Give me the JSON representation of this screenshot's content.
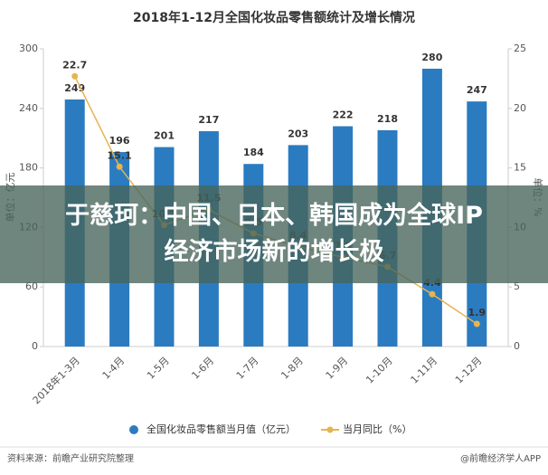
{
  "chart_data": {
    "type": "bar_line",
    "title": "2018年1-12月全国化妆品零售额统计及增长情况",
    "ylabel": "单位：亿元",
    "y2label": "单位：%",
    "categories": [
      "2018年1-3月",
      "1-4月",
      "1-5月",
      "1-6月",
      "1-7月",
      "1-8月",
      "1-9月",
      "1-10月",
      "1-11月",
      "1-12月"
    ],
    "series": [
      {
        "name": "全国化妆品零售额当月值（亿元）",
        "color": "#2b7bc1",
        "values": [
          249,
          196,
          201,
          217,
          184,
          203,
          222,
          218,
          280,
          247
        ]
      },
      {
        "name": "当月同比（%）",
        "color": "#e6b450",
        "axis": "y2",
        "values": [
          22.7,
          15.1,
          10.2,
          11.5,
          9.5,
          8.4,
          7.5,
          6.7,
          4.4,
          1.9
        ]
      }
    ],
    "ylim": [
      0,
      300
    ],
    "yticks": [
      0,
      60,
      120,
      180,
      240,
      300
    ],
    "y2lim": [
      0,
      25
    ],
    "y2ticks": [
      0,
      5,
      10,
      15,
      20,
      25
    ],
    "grid": false,
    "source": "资料来源：前瞻产业研究院整理",
    "brand": "@前瞻经济学人APP",
    "overlay_title": "于慈珂：中国、日本、韩国成为全球IP经济市场新的增长极"
  }
}
